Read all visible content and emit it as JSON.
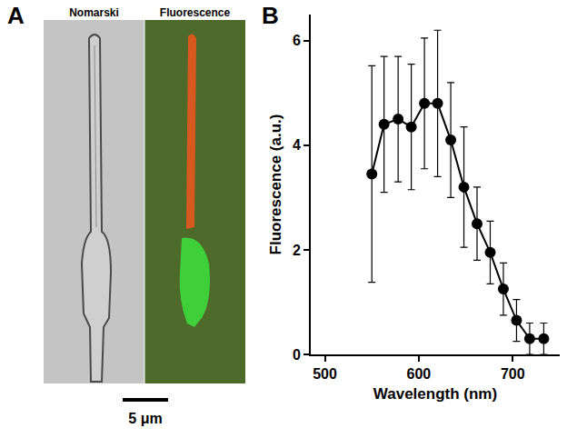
{
  "figure": {
    "panel_a": {
      "panel": "A",
      "image_titles": [
        "Nomarski",
        "Fluorescence"
      ],
      "scale_bar": "5 μm"
    }
  },
  "chart_data": {
    "panel": "B",
    "type": "scatter",
    "x": [
      550,
      563,
      578,
      592,
      606,
      620,
      634,
      648,
      662,
      676,
      690,
      704,
      718,
      733
    ],
    "values": [
      3.45,
      4.4,
      4.5,
      4.35,
      4.8,
      4.8,
      4.1,
      3.2,
      2.5,
      1.95,
      1.25,
      0.65,
      0.3,
      0.3
    ],
    "errors": [
      2.07,
      1.3,
      1.2,
      1.2,
      1.25,
      1.4,
      1.1,
      1.15,
      0.7,
      0.6,
      0.5,
      0.4,
      0.3,
      0.3
    ],
    "xlabel": "Wavelength (nm)",
    "ylabel": "Fluorescence (a.u.)",
    "xlim": [
      485,
      750
    ],
    "xticks": [
      500,
      600,
      700
    ],
    "ylim": [
      0,
      6.5
    ],
    "yticks": [
      0,
      2,
      4,
      6
    ],
    "color": "#000000",
    "marker": "circle",
    "line_style": "solid",
    "grid": false
  }
}
